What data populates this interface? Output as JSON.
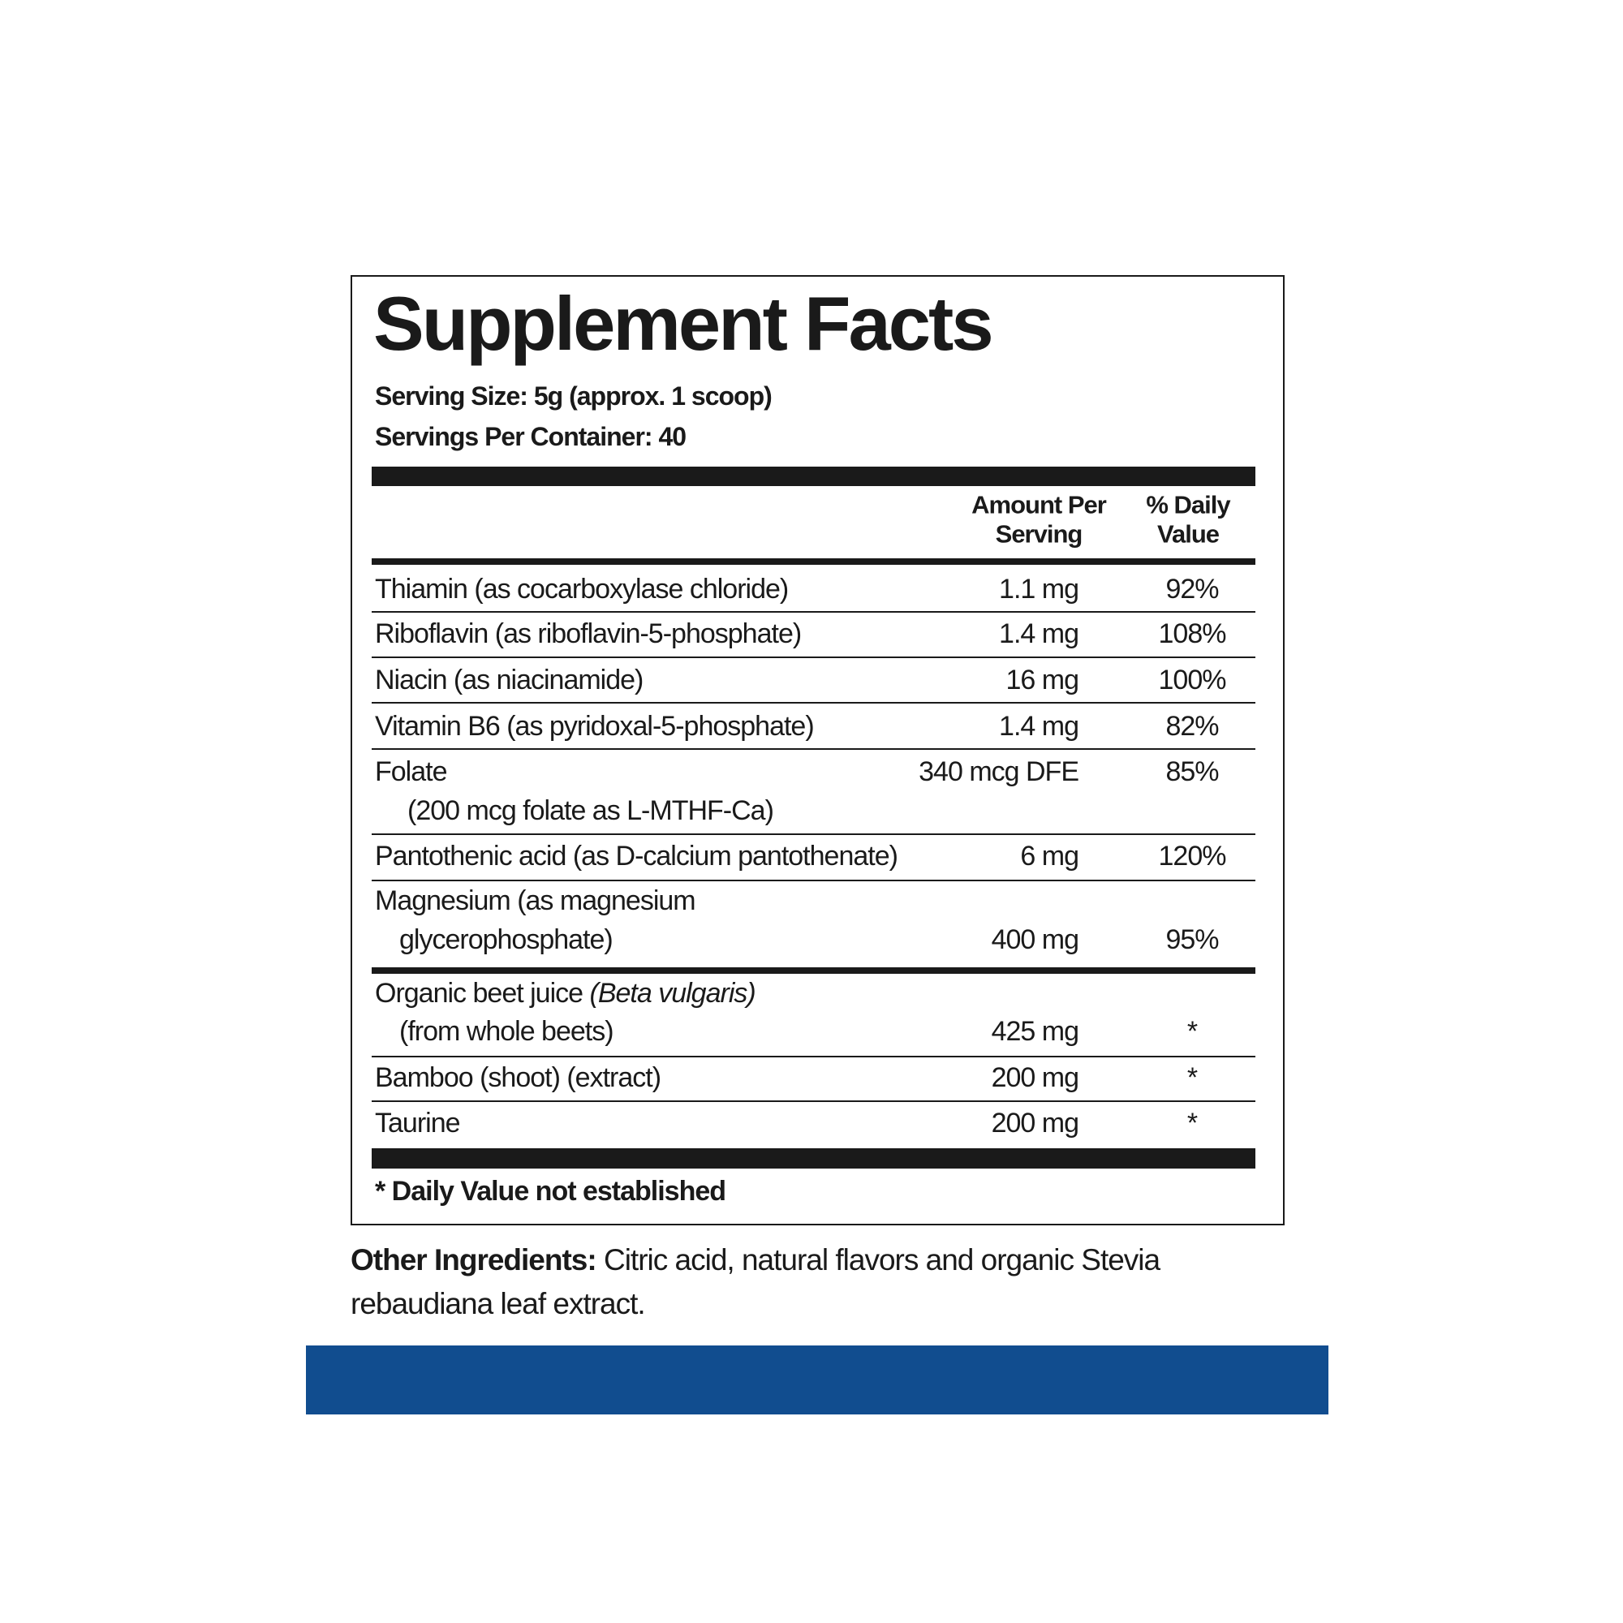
{
  "title": "Supplement Facts",
  "serving_size": "Serving Size: 5g (approx. 1 scoop)",
  "servings_per_container": "Servings Per Container: 40",
  "table": {
    "header": {
      "amount": [
        "Amount Per",
        "Serving"
      ],
      "daily_value": [
        "% Daily",
        "Value"
      ]
    },
    "rows": [
      {
        "name": "Thiamin (as cocarboxylase chloride)",
        "amount": "1.1 mg",
        "daily_value": "92%"
      },
      {
        "name": "Riboflavin (as riboflavin-5-phosphate)",
        "amount": "1.4 mg",
        "daily_value": "108%"
      },
      {
        "name": "Niacin (as niacinamide)",
        "amount": "16 mg",
        "daily_value": "100%"
      },
      {
        "name": "Vitamin B6 (as pyridoxal-5-phosphate)",
        "amount": "1.4 mg",
        "daily_value": "82%"
      },
      {
        "name": "Folate",
        "name_line2": "(200 mcg folate as L-MTHF-Ca)",
        "amount": "340 mcg DFE",
        "daily_value": "85%"
      },
      {
        "name": "Pantothenic acid (as D-calcium pantothenate)",
        "amount": "6 mg",
        "daily_value": "120%"
      },
      {
        "name": "Magnesium (as magnesium",
        "name_line2": "glycerophosphate)",
        "amount": "400 mg",
        "daily_value": "95%"
      },
      {
        "name": "Organic beet juice",
        "name_italic": "(Beta vulgaris)",
        "name_line2": "(from whole beets)",
        "amount": "425 mg",
        "daily_value": "*"
      },
      {
        "name": "Bamboo (shoot) (extract)",
        "amount": "200 mg",
        "daily_value": "*"
      },
      {
        "name": "Taurine",
        "amount": "200 mg",
        "daily_value": "*"
      }
    ]
  },
  "footnote": "* Daily Value not established",
  "other_ingredients": {
    "label": "Other Ingredients:",
    "text": "Citric acid, natural flavors and organic Stevia rebaudiana leaf extract."
  }
}
